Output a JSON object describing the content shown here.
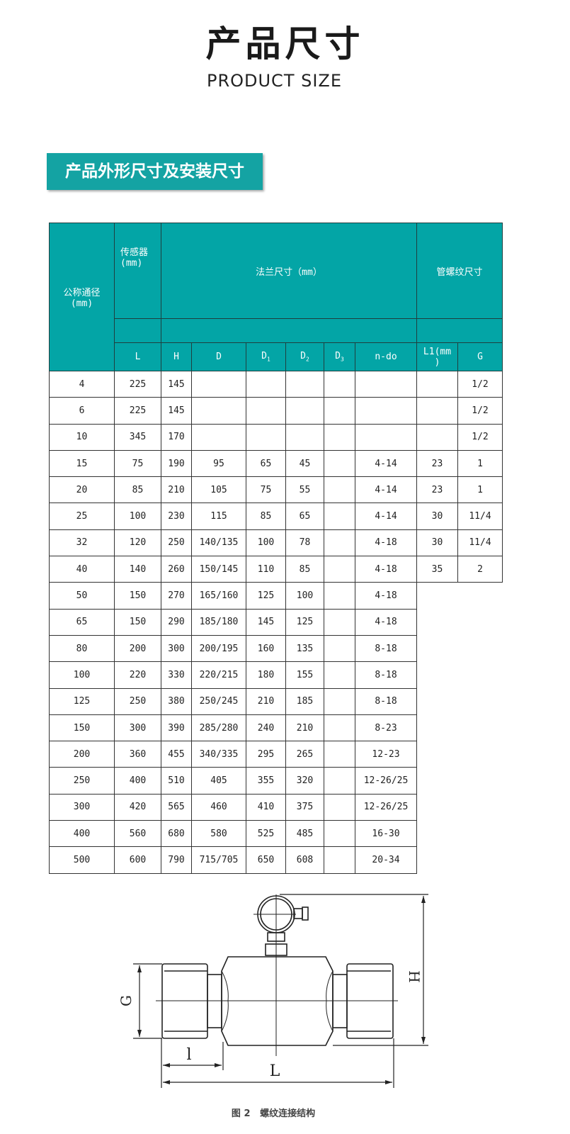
{
  "header": {
    "title": "产品尺寸",
    "subtitle": "PRODUCT SIZE",
    "banner": "产品外形尺寸及安装尺寸"
  },
  "table": {
    "col_nominal": "公称通径\n(mm)",
    "col_sensor": "传感器\n(mm)",
    "col_flange": "法兰尺寸（mm）",
    "col_thread": "管螺纹尺寸",
    "sub": {
      "L": "L",
      "H": "H",
      "D": "D",
      "D1": "D",
      "D1_sub": "1",
      "D2": "D",
      "D2_sub": "2",
      "D3": "D",
      "D3_sub": "3",
      "ndo": "n-do",
      "L1": "L1(mm\n)",
      "G": "G"
    },
    "rows": [
      [
        "4",
        "225",
        "145",
        "",
        "",
        "",
        "",
        "",
        "",
        "1/2"
      ],
      [
        "6",
        "225",
        "145",
        "",
        "",
        "",
        "",
        "",
        "",
        "1/2"
      ],
      [
        "10",
        "345",
        "170",
        "",
        "",
        "",
        "",
        "",
        "",
        "1/2"
      ],
      [
        "15",
        "75",
        "190",
        "95",
        "65",
        "45",
        "",
        "4-14",
        "23",
        "1"
      ],
      [
        "20",
        "85",
        "210",
        "105",
        "75",
        "55",
        "",
        "4-14",
        "23",
        "1"
      ],
      [
        "25",
        "100",
        "230",
        "115",
        "85",
        "65",
        "",
        "4-14",
        "30",
        "11/4"
      ],
      [
        "32",
        "120",
        "250",
        "140/135",
        "100",
        "78",
        "",
        "4-18",
        "30",
        "11/4"
      ],
      [
        "40",
        "140",
        "260",
        "150/145",
        "110",
        "85",
        "",
        "4-18",
        "35",
        "2"
      ],
      [
        "50",
        "150",
        "270",
        "165/160",
        "125",
        "100",
        "",
        "4-18"
      ],
      [
        "65",
        "150",
        "290",
        "185/180",
        "145",
        "125",
        "",
        "4-18"
      ],
      [
        "80",
        "200",
        "300",
        "200/195",
        "160",
        "135",
        "",
        "8-18"
      ],
      [
        "100",
        "220",
        "330",
        "220/215",
        "180",
        "155",
        "",
        "8-18"
      ],
      [
        "125",
        "250",
        "380",
        "250/245",
        "210",
        "185",
        "",
        "8-18"
      ],
      [
        "150",
        "300",
        "390",
        "285/280",
        "240",
        "210",
        "",
        "8-23"
      ],
      [
        "200",
        "360",
        "455",
        "340/335",
        "295",
        "265",
        "",
        "12-23"
      ],
      [
        "250",
        "400",
        "510",
        "405",
        "355",
        "320",
        "",
        "12-26/25"
      ],
      [
        "300",
        "420",
        "565",
        "460",
        "410",
        "375",
        "",
        "12-26/25"
      ],
      [
        "400",
        "560",
        "680",
        "580",
        "525",
        "485",
        "",
        "16-30"
      ],
      [
        "500",
        "600",
        "790",
        "715/705",
        "650",
        "608",
        "",
        "20-34"
      ]
    ]
  },
  "diagram": {
    "label_G": "G",
    "label_H": "H",
    "label_l": "l",
    "label_L": "L",
    "caption": "图 2   螺纹连接结构"
  },
  "colors": {
    "accent": "#14a3a3",
    "header_bg": "#03a5a6"
  }
}
